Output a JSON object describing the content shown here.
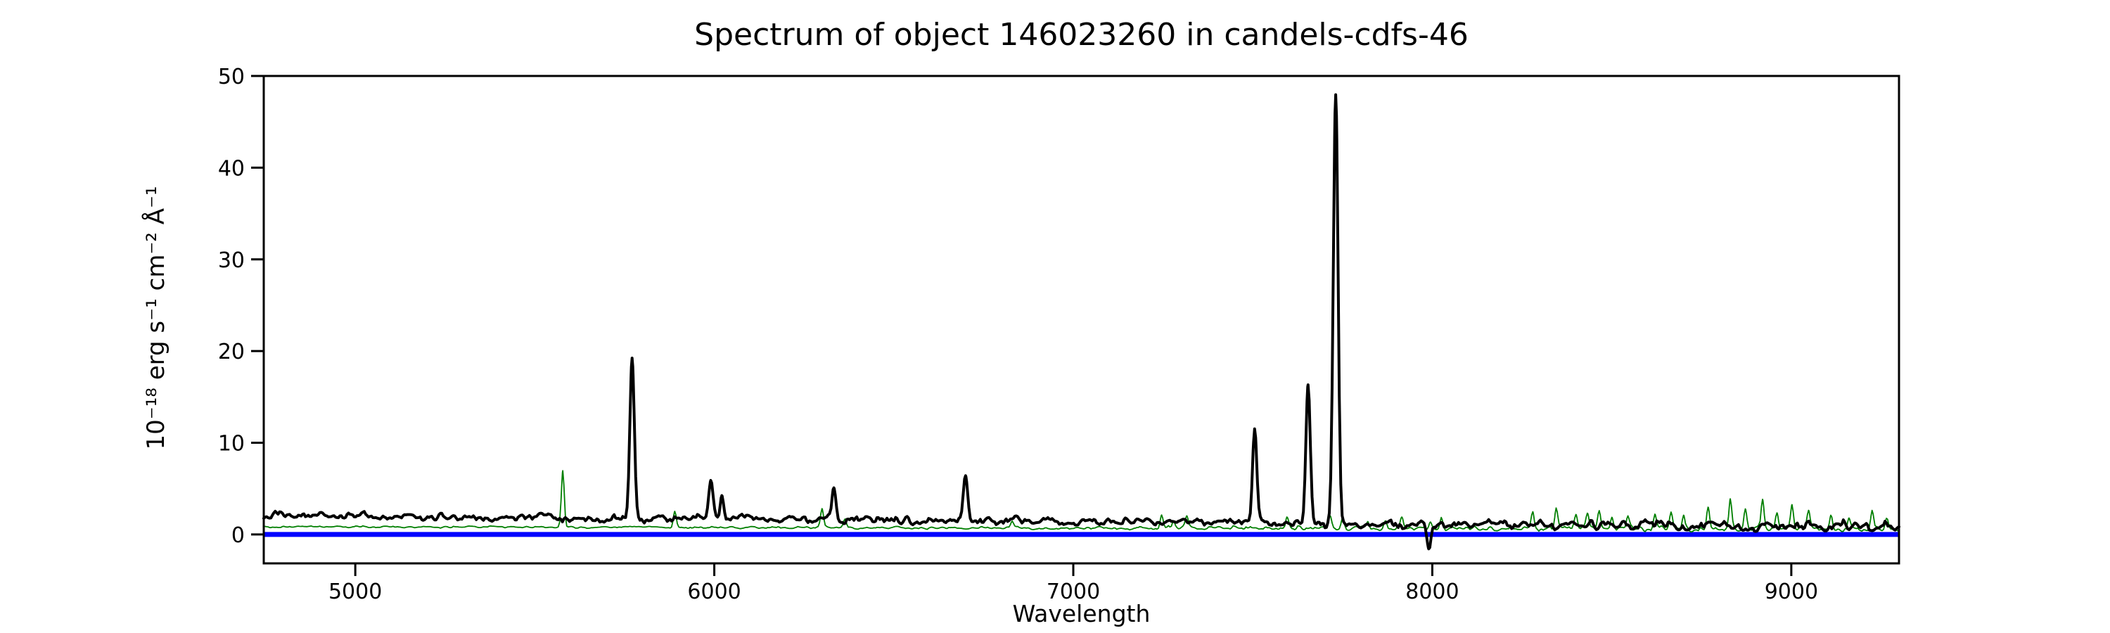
{
  "chart_data": {
    "type": "line",
    "title": "Spectrum of object 146023260 in candels-cdfs-46",
    "xlabel": "Wavelength",
    "ylabel": "10⁻¹⁸ erg s⁻¹ cm⁻² Å⁻¹",
    "xlim": [
      4745,
      9300
    ],
    "ylim": [
      -3.15,
      50
    ],
    "xticks": [
      5000,
      6000,
      7000,
      8000,
      9000
    ],
    "yticks": [
      0,
      10,
      20,
      30,
      40,
      50
    ],
    "grid": false,
    "frame_color": "#000000",
    "series": [
      {
        "name": "zero-line",
        "kind": "hline",
        "y": 0,
        "color": "#0000ff",
        "linewidth": 7
      },
      {
        "name": "noise-spectrum",
        "kind": "spectrum",
        "color": "#007f00",
        "linewidth": 1.8,
        "seed": 777,
        "step": 4,
        "noise_corr": [
          14,
          6
        ],
        "continuum_anchors": [
          [
            4745,
            0.85
          ],
          [
            5600,
            0.78
          ],
          [
            7000,
            0.72
          ],
          [
            7800,
            0.68
          ],
          [
            9300,
            0.62
          ]
        ],
        "noise_amp_anchors": [
          [
            4745,
            0.1
          ],
          [
            6800,
            0.15
          ],
          [
            7400,
            0.25
          ],
          [
            8050,
            0.3
          ],
          [
            9300,
            0.38
          ]
        ],
        "peaks": [
          {
            "wavelength": 5578,
            "peak_flux": 6.9,
            "sigma": 4
          },
          {
            "wavelength": 5890,
            "peak_flux": 2.5,
            "sigma": 4
          },
          {
            "wavelength": 6300,
            "peak_flux": 2.9,
            "sigma": 4
          },
          {
            "wavelength": 6364,
            "peak_flux": 1.7,
            "sigma": 4
          },
          {
            "wavelength": 6830,
            "peak_flux": 1.5,
            "sigma": 4
          },
          {
            "wavelength": 7246,
            "peak_flux": 2.1,
            "sigma": 4
          },
          {
            "wavelength": 7280,
            "peak_flux": 1.5,
            "sigma": 4
          },
          {
            "wavelength": 7316,
            "peak_flux": 1.8,
            "sigma": 4
          },
          {
            "wavelength": 7595,
            "peak_flux": 1.7,
            "sigma": 4
          },
          {
            "wavelength": 7715,
            "peak_flux": 2.0,
            "sigma": 4
          },
          {
            "wavelength": 7750,
            "peak_flux": 1.9,
            "sigma": 4
          },
          {
            "wavelength": 7820,
            "peak_flux": 1.6,
            "sigma": 4
          },
          {
            "wavelength": 7870,
            "peak_flux": 1.5,
            "sigma": 4
          },
          {
            "wavelength": 7915,
            "peak_flux": 1.8,
            "sigma": 4
          },
          {
            "wavelength": 7995,
            "peak_flux": 1.6,
            "sigma": 4
          },
          {
            "wavelength": 8025,
            "peak_flux": 1.9,
            "sigma": 4
          },
          {
            "wavelength": 8280,
            "peak_flux": 2.4,
            "sigma": 4
          },
          {
            "wavelength": 8345,
            "peak_flux": 3.1,
            "sigma": 4
          },
          {
            "wavelength": 8400,
            "peak_flux": 2.3,
            "sigma": 4
          },
          {
            "wavelength": 8432,
            "peak_flux": 2.1,
            "sigma": 4
          },
          {
            "wavelength": 8465,
            "peak_flux": 2.8,
            "sigma": 4
          },
          {
            "wavelength": 8500,
            "peak_flux": 2.0,
            "sigma": 4
          },
          {
            "wavelength": 8545,
            "peak_flux": 1.8,
            "sigma": 4
          },
          {
            "wavelength": 8620,
            "peak_flux": 2.2,
            "sigma": 4
          },
          {
            "wavelength": 8665,
            "peak_flux": 2.6,
            "sigma": 4
          },
          {
            "wavelength": 8700,
            "peak_flux": 2.1,
            "sigma": 4
          },
          {
            "wavelength": 8768,
            "peak_flux": 3.0,
            "sigma": 4
          },
          {
            "wavelength": 8830,
            "peak_flux": 3.7,
            "sigma": 4
          },
          {
            "wavelength": 8872,
            "peak_flux": 2.9,
            "sigma": 4
          },
          {
            "wavelength": 8920,
            "peak_flux": 3.9,
            "sigma": 4
          },
          {
            "wavelength": 8960,
            "peak_flux": 2.4,
            "sigma": 4
          },
          {
            "wavelength": 9002,
            "peak_flux": 3.3,
            "sigma": 4
          },
          {
            "wavelength": 9048,
            "peak_flux": 2.6,
            "sigma": 4
          },
          {
            "wavelength": 9110,
            "peak_flux": 2.1,
            "sigma": 4
          },
          {
            "wavelength": 9160,
            "peak_flux": 1.9,
            "sigma": 4
          },
          {
            "wavelength": 9225,
            "peak_flux": 2.4,
            "sigma": 4
          },
          {
            "wavelength": 9265,
            "peak_flux": 1.7,
            "sigma": 4
          }
        ]
      },
      {
        "name": "flux-spectrum",
        "kind": "spectrum",
        "color": "#000000",
        "linewidth": 4,
        "seed": 1337,
        "step": 4,
        "noise_corr": [
          16,
          6.5
        ],
        "continuum_anchors": [
          [
            4745,
            2.15
          ],
          [
            5300,
            1.95
          ],
          [
            6000,
            1.75
          ],
          [
            6800,
            1.5
          ],
          [
            7500,
            1.35
          ],
          [
            7750,
            1.15
          ],
          [
            8200,
            1.0
          ],
          [
            9300,
            0.95
          ]
        ],
        "noise_amp_anchors": [
          [
            4745,
            0.5
          ],
          [
            7600,
            0.48
          ],
          [
            7900,
            0.55
          ],
          [
            9300,
            0.6
          ]
        ],
        "peaks": [
          {
            "wavelength": 5771,
            "peak_flux": 19.3,
            "sigma": 6
          },
          {
            "wavelength": 5990,
            "peak_flux": 5.5,
            "sigma": 6
          },
          {
            "wavelength": 6022,
            "peak_flux": 4.3,
            "sigma": 5
          },
          {
            "wavelength": 6334,
            "peak_flux": 4.8,
            "sigma": 6
          },
          {
            "wavelength": 6700,
            "peak_flux": 6.3,
            "sigma": 6
          },
          {
            "wavelength": 7505,
            "peak_flux": 11.4,
            "sigma": 6
          },
          {
            "wavelength": 7654,
            "peak_flux": 15.8,
            "sigma": 6
          },
          {
            "wavelength": 7731,
            "peak_flux": 47.8,
            "sigma": 6.5
          },
          {
            "wavelength": 7990,
            "peak_flux": -1.5,
            "sigma": 5
          }
        ]
      }
    ]
  }
}
